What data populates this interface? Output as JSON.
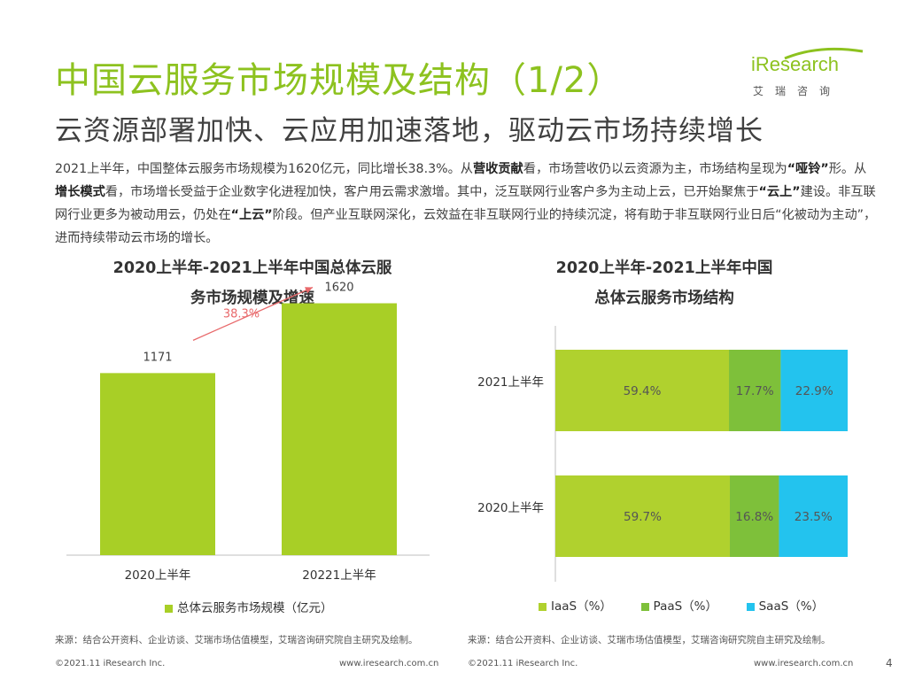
{
  "header": {
    "title": "中国云服务市场规模及结构（1/2）",
    "subtitle": "云资源部署加快、云应用加速落地，驱动云市场持续增长",
    "logo_word": "iResearch",
    "logo_cn": "艾瑞咨询"
  },
  "paragraph": {
    "p1": "2021上半年，中国整体云服务市场规模为1620亿元，同比增长38.3%。从",
    "b1": "营收贡献",
    "p2": "看，市场营收仍以云资源为主，市场结构呈现为",
    "b2": "“哑铃”",
    "p3": "形。从",
    "b3": "增长模式",
    "p4": "看，市场增长受益于企业数字化进程加快，客户用云需求激增。其中，泛互联网行业客户多为主动上云，已开始聚焦于",
    "b4": "“云上”",
    "p5": "建设。非互联网行业更多为被动用云，仍处在",
    "b5": "“上云”",
    "p6": "阶段。但产业互联网深化，云效益在非互联网行业的持续沉淀，将有助于非互联网行业日后“化被动为主动”，进而持续带动云市场的增长。"
  },
  "left_title": {
    "line1": "2020上半年-2021上半年中国总体云服",
    "line2": "务市场规模及增速"
  },
  "right_title": {
    "line1": "2020上半年-2021上半年中国",
    "line2": "总体云服务市场结构"
  },
  "chart_data": [
    {
      "type": "bar",
      "categories": [
        "2020上半年",
        "20221上半年"
      ],
      "series": [
        {
          "name": "总体云服务市场规模（亿元）",
          "values": [
            1171,
            1620
          ]
        }
      ],
      "growth_label": "38.3%",
      "color": "#a8cf26",
      "growth_color": "#e8696b"
    },
    {
      "type": "bar",
      "orientation": "horizontal",
      "stacked": true,
      "categories": [
        "2021上半年",
        "2020上半年"
      ],
      "series": [
        {
          "name": "IaaS（%）",
          "values": [
            59.4,
            59.7
          ],
          "color": "#b0d12e"
        },
        {
          "name": "PaaS（%）",
          "values": [
            17.7,
            16.8
          ],
          "color": "#7ec03a"
        },
        {
          "name": "SaaS（%）",
          "values": [
            22.9,
            23.5
          ],
          "color": "#23c3ee"
        }
      ]
    }
  ],
  "sources": {
    "left": "来源：结合公开资料、企业访谈、艾瑞市场估值模型，艾瑞咨询研究院自主研究及绘制。",
    "right": "来源：结合公开资料、企业访谈、艾瑞市场估值模型，艾瑞咨询研究院自主研究及绘制。"
  },
  "footer": {
    "copy_left": "©2021.11 iResearch Inc.",
    "url_left": "www.iresearch.com.cn",
    "copy_right": "©2021.11 iResearch Inc.",
    "url_right": "www.iresearch.com.cn",
    "page": "4"
  }
}
